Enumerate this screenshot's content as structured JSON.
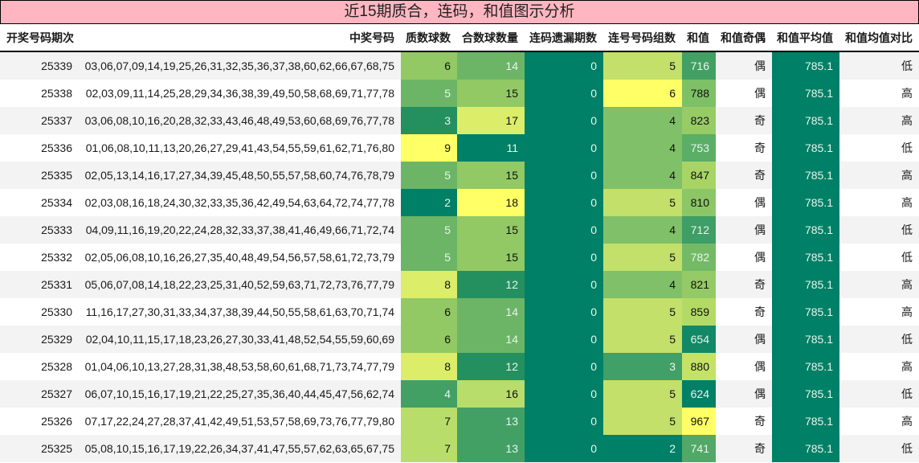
{
  "title": "近15期质合，连码，和值图示分析",
  "columns": [
    "开奖号码期次",
    "中奖号码",
    "质数球数",
    "合数球数量",
    "连码遗漏期数",
    "连号号码组数",
    "和值",
    "和值奇偶",
    "和值平均值",
    "和值均值对比"
  ],
  "scale_colors": {
    "min": "#008066",
    "mid": "#7ec066",
    "max": "#ffff66"
  },
  "rows": [
    {
      "period": "25339",
      "numbers": "03,06,07,09,14,19,25,26,31,32,35,36,37,38,60,62,66,67,68,75",
      "prime": "6",
      "composite": "14",
      "miss": "0",
      "consec": "5",
      "sum": "716",
      "parity": "偶",
      "avg": "785.1",
      "compare": "低",
      "colors": {
        "prime": "#92c965",
        "composite": "#6cb566",
        "miss": "#008066",
        "consec": "#c2e06a",
        "sum": "#42a064",
        "avg": "#008066"
      }
    },
    {
      "period": "25338",
      "numbers": "02,03,09,11,14,25,28,29,34,36,38,39,49,50,58,68,69,71,77,78",
      "prime": "5",
      "composite": "15",
      "miss": "0",
      "consec": "6",
      "sum": "788",
      "parity": "偶",
      "avg": "785.1",
      "compare": "高",
      "colors": {
        "prime": "#6cb566",
        "composite": "#92c965",
        "miss": "#008066",
        "consec": "#ffff66",
        "sum": "#7ec066",
        "avg": "#008066"
      }
    },
    {
      "period": "25337",
      "numbers": "03,06,08,10,16,20,28,32,33,43,46,48,49,53,60,68,69,76,77,78",
      "prime": "3",
      "composite": "17",
      "miss": "0",
      "consec": "4",
      "sum": "823",
      "parity": "奇",
      "avg": "785.1",
      "compare": "高",
      "colors": {
        "prime": "#24905f",
        "composite": "#dbed69",
        "miss": "#008066",
        "consec": "#80c068",
        "sum": "#96cb66",
        "avg": "#008066"
      }
    },
    {
      "period": "25336",
      "numbers": "01,06,08,10,11,13,20,26,27,29,41,43,54,55,59,61,62,71,76,80",
      "prime": "9",
      "composite": "11",
      "miss": "0",
      "consec": "4",
      "sum": "753",
      "parity": "奇",
      "avg": "785.1",
      "compare": "低",
      "colors": {
        "prime": "#ffff66",
        "composite": "#008066",
        "miss": "#008066",
        "consec": "#80c068",
        "sum": "#5aae66",
        "avg": "#008066"
      }
    },
    {
      "period": "25335",
      "numbers": "02,05,13,14,16,17,27,34,39,45,48,50,55,57,58,60,74,76,78,79",
      "prime": "5",
      "composite": "15",
      "miss": "0",
      "consec": "4",
      "sum": "847",
      "parity": "奇",
      "avg": "785.1",
      "compare": "高",
      "colors": {
        "prime": "#6cb566",
        "composite": "#92c965",
        "miss": "#008066",
        "consec": "#80c068",
        "sum": "#a8d466",
        "avg": "#008066"
      }
    },
    {
      "period": "25334",
      "numbers": "02,03,08,16,18,24,30,32,33,35,36,42,49,54,63,64,72,74,77,78",
      "prime": "2",
      "composite": "18",
      "miss": "0",
      "consec": "5",
      "sum": "810",
      "parity": "偶",
      "avg": "785.1",
      "compare": "高",
      "colors": {
        "prime": "#008066",
        "composite": "#ffff66",
        "miss": "#008066",
        "consec": "#c2e06a",
        "sum": "#8cc666",
        "avg": "#008066"
      }
    },
    {
      "period": "25333",
      "numbers": "04,09,11,16,19,20,22,24,28,32,33,37,38,41,46,49,66,71,72,74",
      "prime": "5",
      "composite": "15",
      "miss": "0",
      "consec": "4",
      "sum": "712",
      "parity": "偶",
      "avg": "785.1",
      "compare": "低",
      "colors": {
        "prime": "#6cb566",
        "composite": "#92c965",
        "miss": "#008066",
        "consec": "#80c068",
        "sum": "#3e9e66",
        "avg": "#008066"
      }
    },
    {
      "period": "25332",
      "numbers": "02,05,06,08,10,16,26,27,35,40,48,49,54,56,57,58,61,72,73,79",
      "prime": "5",
      "composite": "15",
      "miss": "0",
      "consec": "5",
      "sum": "782",
      "parity": "偶",
      "avg": "785.1",
      "compare": "低",
      "colors": {
        "prime": "#6cb566",
        "composite": "#92c965",
        "miss": "#008066",
        "consec": "#c2e06a",
        "sum": "#74ba66",
        "avg": "#008066"
      }
    },
    {
      "period": "25331",
      "numbers": "05,06,07,08,14,18,22,23,25,31,40,52,59,63,71,72,73,76,77,79",
      "prime": "8",
      "composite": "12",
      "miss": "0",
      "consec": "4",
      "sum": "821",
      "parity": "奇",
      "avg": "785.1",
      "compare": "高",
      "colors": {
        "prime": "#dbed69",
        "composite": "#24905f",
        "miss": "#008066",
        "consec": "#80c068",
        "sum": "#94ca66",
        "avg": "#008066"
      }
    },
    {
      "period": "25330",
      "numbers": "11,16,17,27,30,31,33,34,37,38,39,44,50,55,58,61,63,70,71,74",
      "prime": "6",
      "composite": "14",
      "miss": "0",
      "consec": "5",
      "sum": "859",
      "parity": "奇",
      "avg": "785.1",
      "compare": "高",
      "colors": {
        "prime": "#92c965",
        "composite": "#6cb566",
        "miss": "#008066",
        "consec": "#c2e06a",
        "sum": "#b4da66",
        "avg": "#008066"
      }
    },
    {
      "period": "25329",
      "numbers": "02,04,10,11,15,17,18,23,26,27,30,33,41,48,52,54,55,59,60,69",
      "prime": "6",
      "composite": "14",
      "miss": "0",
      "consec": "5",
      "sum": "654",
      "parity": "偶",
      "avg": "785.1",
      "compare": "低",
      "colors": {
        "prime": "#92c965",
        "composite": "#6cb566",
        "miss": "#008066",
        "consec": "#c2e06a",
        "sum": "#128866",
        "avg": "#008066"
      }
    },
    {
      "period": "25328",
      "numbers": "01,04,06,10,13,27,28,31,38,48,53,58,60,61,68,71,73,74,77,79",
      "prime": "8",
      "composite": "12",
      "miss": "0",
      "consec": "3",
      "sum": "880",
      "parity": "偶",
      "avg": "785.1",
      "compare": "高",
      "colors": {
        "prime": "#dbed69",
        "composite": "#24905f",
        "miss": "#008066",
        "consec": "#40a067",
        "sum": "#c4e266",
        "avg": "#008066"
      }
    },
    {
      "period": "25327",
      "numbers": "06,07,10,15,16,17,19,21,22,25,27,35,36,40,44,45,47,56,62,74",
      "prime": "4",
      "composite": "16",
      "miss": "0",
      "consec": "5",
      "sum": "624",
      "parity": "偶",
      "avg": "785.1",
      "compare": "低",
      "colors": {
        "prime": "#42a064",
        "composite": "#b8dd6a",
        "miss": "#008066",
        "consec": "#c2e06a",
        "sum": "#008066",
        "avg": "#008066"
      }
    },
    {
      "period": "25326",
      "numbers": "07,17,22,24,27,28,37,41,42,49,51,53,57,58,69,73,76,77,79,80",
      "prime": "7",
      "composite": "13",
      "miss": "0",
      "consec": "5",
      "sum": "967",
      "parity": "奇",
      "avg": "785.1",
      "compare": "高",
      "colors": {
        "prime": "#b8dd6a",
        "composite": "#42a064",
        "miss": "#008066",
        "consec": "#c2e06a",
        "sum": "#ffff66",
        "avg": "#008066"
      }
    },
    {
      "period": "25325",
      "numbers": "05,08,10,15,16,17,19,22,26,34,37,41,47,55,57,62,63,65,67,75",
      "prime": "7",
      "composite": "13",
      "miss": "0",
      "consec": "2",
      "sum": "741",
      "parity": "奇",
      "avg": "785.1",
      "compare": "低",
      "colors": {
        "prime": "#b8dd6a",
        "composite": "#42a064",
        "miss": "#008066",
        "consec": "#008066",
        "sum": "#52a866",
        "avg": "#008066"
      }
    }
  ],
  "light_text": {
    "prime": [
      "5",
      "4",
      "3",
      "2"
    ],
    "composite": [
      "14",
      "13",
      "12",
      "11"
    ],
    "consec": [
      "3",
      "2"
    ],
    "sum_max_light": 785,
    "miss": [
      "0"
    ],
    "avg": [
      "785.1"
    ]
  }
}
